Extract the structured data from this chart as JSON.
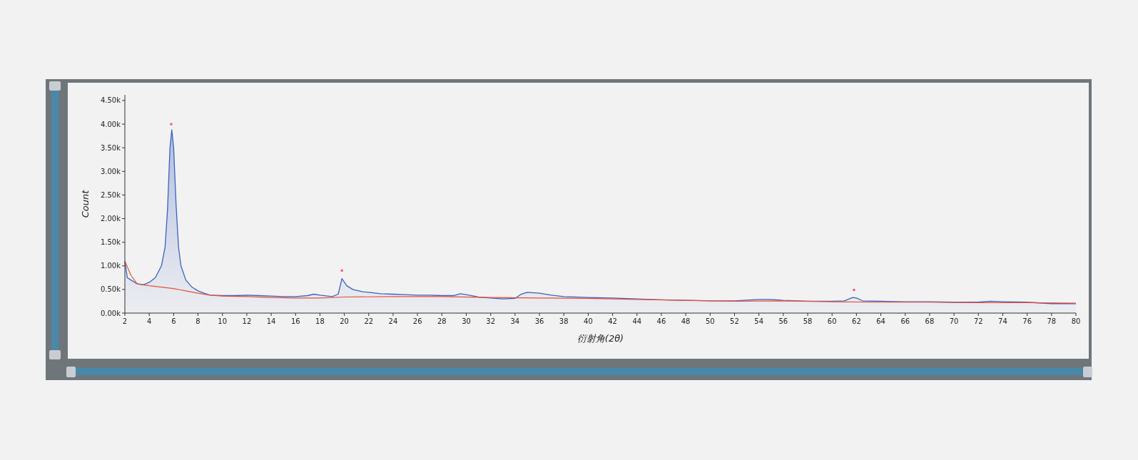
{
  "chart_data": {
    "type": "area",
    "xlabel": "衍射角(2θ)",
    "ylabel": "Count",
    "xlim": [
      2,
      80
    ],
    "xticks": [
      2,
      4,
      6,
      8,
      10,
      12,
      14,
      16,
      18,
      20,
      22,
      24,
      26,
      28,
      30,
      32,
      34,
      36,
      38,
      40,
      42,
      44,
      46,
      48,
      50,
      52,
      54,
      56,
      58,
      60,
      62,
      64,
      66,
      68,
      70,
      72,
      74,
      76,
      78,
      80
    ],
    "ylim": [
      0,
      4620
    ],
    "yticks": [
      {
        "value": 0,
        "label": "0.00k"
      },
      {
        "value": 500,
        "label": "0.50k"
      },
      {
        "value": 1000,
        "label": "1.00k"
      },
      {
        "value": 1500,
        "label": "1.50k"
      },
      {
        "value": 2000,
        "label": "2.00k"
      },
      {
        "value": 2500,
        "label": "2.50k"
      },
      {
        "value": 3000,
        "label": "3.00k"
      },
      {
        "value": 3500,
        "label": "3.50k"
      },
      {
        "value": 4000,
        "label": "4.00k"
      },
      {
        "value": 4500,
        "label": "4.50k"
      }
    ],
    "series": [
      {
        "color": "#3a62c0",
        "x": [
          2,
          2.2,
          2.5,
          3,
          3.5,
          4,
          4.5,
          5,
          5.3,
          5.5,
          5.7,
          5.85,
          6,
          6.2,
          6.4,
          6.6,
          7,
          7.5,
          8,
          8.5,
          9,
          10,
          11,
          12,
          13,
          14,
          15,
          16,
          17,
          17.5,
          18,
          19,
          19.5,
          19.8,
          20.2,
          20.7,
          21.5,
          22,
          23,
          24,
          25,
          26,
          27,
          28,
          29,
          29.5,
          30,
          31,
          32,
          33,
          34,
          34.5,
          35,
          36,
          37,
          38,
          40,
          42,
          44,
          46,
          48,
          50,
          52,
          54,
          55,
          56,
          58,
          60,
          61,
          61.7,
          62,
          62.5,
          64,
          66,
          68,
          70,
          72,
          73,
          74,
          76,
          78,
          80
        ],
        "values": [
          1100,
          750,
          700,
          620,
          600,
          650,
          750,
          1000,
          1400,
          2200,
          3500,
          3880,
          3500,
          2300,
          1400,
          1000,
          700,
          550,
          470,
          420,
          380,
          370,
          370,
          380,
          370,
          360,
          350,
          350,
          370,
          400,
          380,
          350,
          400,
          730,
          580,
          500,
          450,
          440,
          410,
          400,
          390,
          380,
          380,
          370,
          370,
          410,
          390,
          340,
          320,
          300,
          310,
          400,
          440,
          420,
          380,
          350,
          330,
          320,
          300,
          280,
          270,
          260,
          260,
          290,
          290,
          270,
          250,
          250,
          260,
          330,
          320,
          260,
          250,
          240,
          240,
          230,
          230,
          250,
          240,
          230,
          200,
          200
        ]
      },
      {
        "type": "line",
        "color": "#e8503a",
        "x": [
          2,
          2.5,
          3,
          4,
          5,
          6,
          7,
          8,
          9,
          10,
          12,
          14,
          16,
          18,
          20,
          24,
          28,
          32,
          36,
          40,
          44,
          48,
          52,
          56,
          60,
          64,
          68,
          72,
          76,
          80
        ],
        "values": [
          1100,
          800,
          620,
          580,
          550,
          520,
          470,
          420,
          380,
          360,
          350,
          330,
          320,
          320,
          340,
          350,
          350,
          330,
          320,
          310,
          290,
          270,
          250,
          260,
          240,
          230,
          230,
          220,
          220,
          210
        ]
      },
      {
        "type": "scatter",
        "color": "#f0508a",
        "marker": "square",
        "x": [
          5.8,
          19.8,
          61.8
        ],
        "values": [
          4000,
          900,
          490
        ]
      }
    ]
  }
}
